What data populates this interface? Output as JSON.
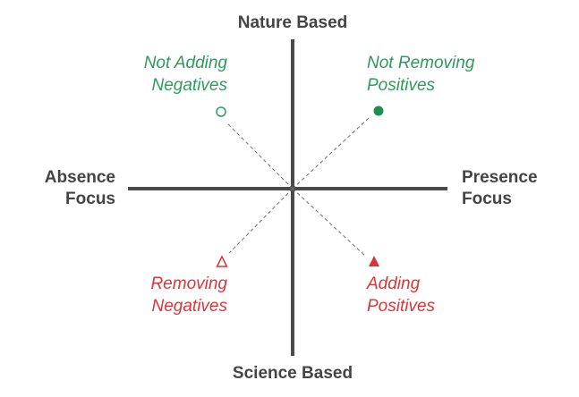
{
  "axes": {
    "top": "Nature Based",
    "bottom": "Science Based",
    "left": [
      "Absence",
      "Focus"
    ],
    "right": [
      "Presence",
      "Focus"
    ]
  },
  "quadrants": {
    "top_left": {
      "lines": [
        "Not Adding",
        "Negatives"
      ],
      "color": "#2e9a5c",
      "marker": "hollow-circle"
    },
    "top_right": {
      "lines": [
        "Not Removing",
        "Positives"
      ],
      "color": "#2e9a5c",
      "marker": "filled-circle"
    },
    "bottom_left": {
      "lines": [
        "Removing",
        "Negatives"
      ],
      "color": "#d9353a",
      "marker": "hollow-triangle"
    },
    "bottom_right": {
      "lines": [
        "Adding",
        "Positives"
      ],
      "color": "#d9353a",
      "marker": "filled-triangle"
    }
  },
  "colors": {
    "axis": "#4a4a4a",
    "axis_label": "#444444",
    "dashed": "#6f6f6f"
  }
}
